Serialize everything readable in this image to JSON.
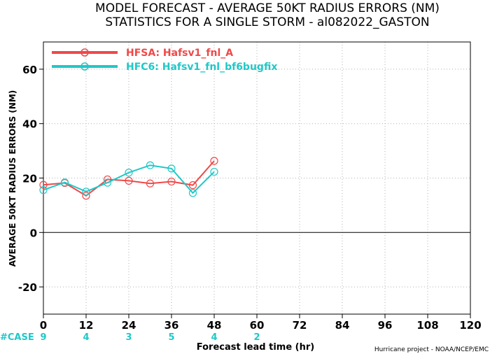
{
  "chart_data": {
    "type": "line",
    "title": "MODEL FORECAST - AVERAGE 50KT RADIUS ERRORS (NM)",
    "subtitle": "STATISTICS FOR A SINGLE STORM - al082022_GASTON",
    "xlabel": "Forecast lead time (hr)",
    "ylabel": "AVERAGE 50KT RADIUS ERRORS (NM)",
    "xlim": [
      0,
      120
    ],
    "ylim": [
      -30,
      70
    ],
    "xticks": [
      "0",
      "12",
      "24",
      "36",
      "48",
      "60",
      "72",
      "84",
      "96",
      "108",
      "120"
    ],
    "yticks": [
      "-20",
      "0",
      "20",
      "40",
      "60"
    ],
    "grid": true,
    "legend_position": "top-left",
    "series": [
      {
        "name": "HFSA: Hafsv1_fnl_A",
        "color": "#f04848",
        "x": [
          0,
          6,
          12,
          18,
          24,
          30,
          36,
          42,
          48
        ],
        "values": [
          17.5,
          18.2,
          13.5,
          19.5,
          19.0,
          18.0,
          18.7,
          17.4,
          26.3
        ]
      },
      {
        "name": "HFC6: Hafsv1_fnl_bf6bugfix",
        "color": "#20c8c8",
        "x": [
          0,
          6,
          12,
          18,
          24,
          30,
          36,
          42,
          48
        ],
        "values": [
          15.6,
          18.4,
          15.0,
          18.3,
          22.0,
          24.7,
          23.5,
          14.5,
          22.3
        ]
      }
    ],
    "case_label": "#CASE",
    "case_counts": [
      {
        "x": 0,
        "n": "9"
      },
      {
        "x": 12,
        "n": "4"
      },
      {
        "x": 24,
        "n": "3"
      },
      {
        "x": 36,
        "n": "5"
      },
      {
        "x": 48,
        "n": "4"
      },
      {
        "x": 60,
        "n": "2"
      }
    ],
    "case_color": "#20c8c8",
    "credit": "Hurricane project - NOAA/NCEP/EMC"
  }
}
